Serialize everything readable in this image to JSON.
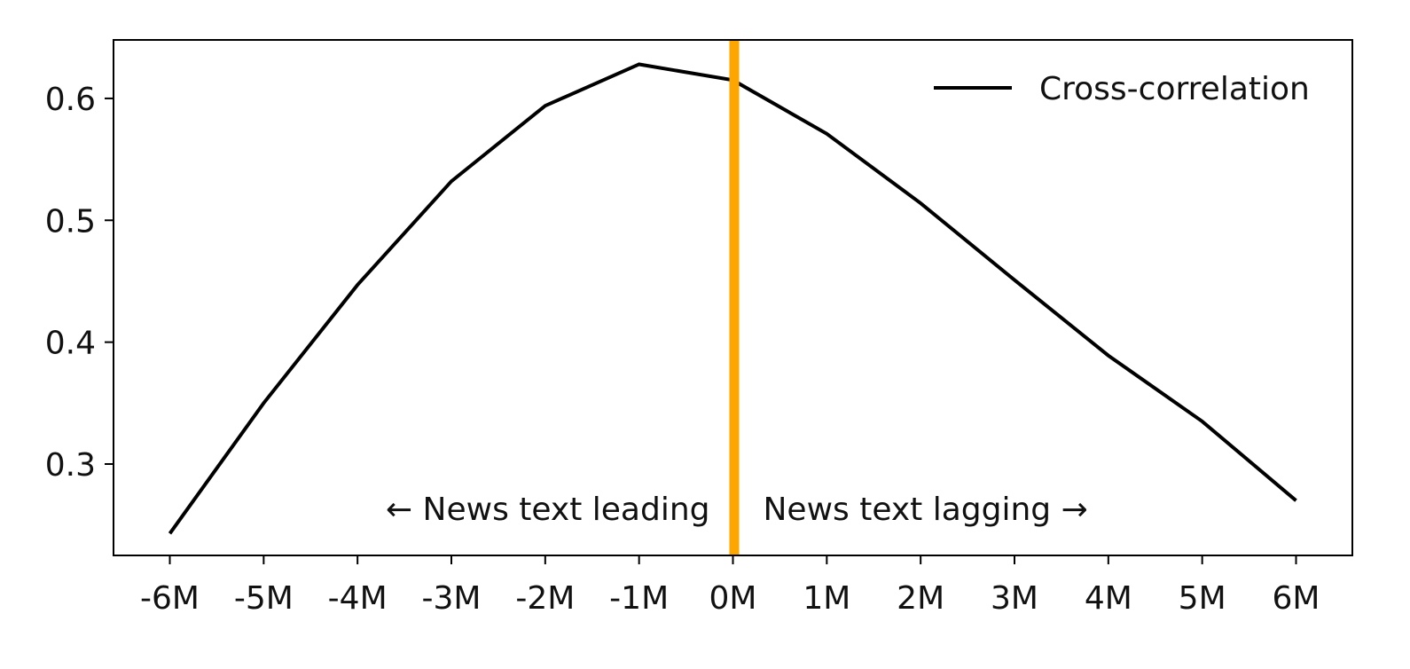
{
  "chart_data": {
    "type": "line",
    "title": "",
    "xlabel": "",
    "ylabel": "",
    "x": [
      -6,
      -5,
      -4,
      -3,
      -2,
      -1,
      0,
      1,
      2,
      3,
      4,
      5,
      6
    ],
    "x_tick_labels": [
      "-6M",
      "-5M",
      "-4M",
      "-3M",
      "-2M",
      "-1M",
      "0M",
      "1M",
      "2M",
      "3M",
      "4M",
      "5M",
      "6M"
    ],
    "y_ticks": [
      0.3,
      0.4,
      0.5,
      0.6
    ],
    "y_tick_labels": [
      "0.3",
      "0.4",
      "0.5",
      "0.6"
    ],
    "xlim": [
      -6.6,
      6.6
    ],
    "ylim": [
      0.225,
      0.648
    ],
    "series": [
      {
        "name": "Cross-correlation",
        "color": "#000000",
        "values": [
          0.243,
          0.35,
          0.447,
          0.532,
          0.594,
          0.628,
          0.615,
          0.571,
          0.514,
          0.451,
          0.389,
          0.335,
          0.27
        ]
      }
    ],
    "vertical_line": {
      "x": 0,
      "color": "#FFA500"
    },
    "annotations": {
      "left": "← News text leading",
      "right": "News text lagging →"
    },
    "legend": {
      "position": "top-right",
      "entries": [
        "Cross-correlation"
      ]
    },
    "grid": false
  }
}
